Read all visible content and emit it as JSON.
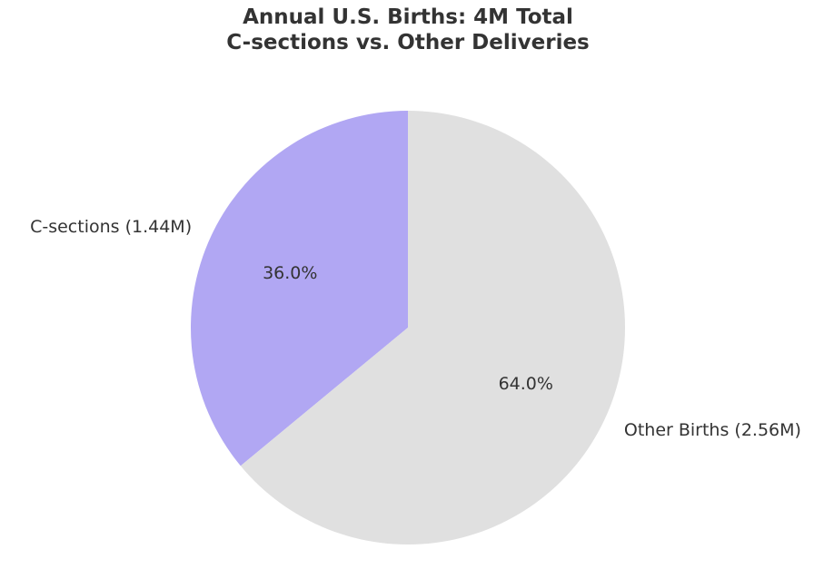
{
  "chart_data": {
    "type": "pie",
    "title_lines": [
      "Annual U.S. Births: 4M Total",
      "C-sections vs. Other Deliveries"
    ],
    "start_angle_deg": 90,
    "direction": "counterclockwise",
    "slices": [
      {
        "label": "C-sections (1.44M)",
        "value": 1.44,
        "percent_label": "36.0%",
        "color": "#b1a7f3"
      },
      {
        "label": "Other Births (2.56M)",
        "value": 2.56,
        "percent_label": "64.0%",
        "color": "#e0e0e0"
      }
    ],
    "text_color": "#333333"
  }
}
